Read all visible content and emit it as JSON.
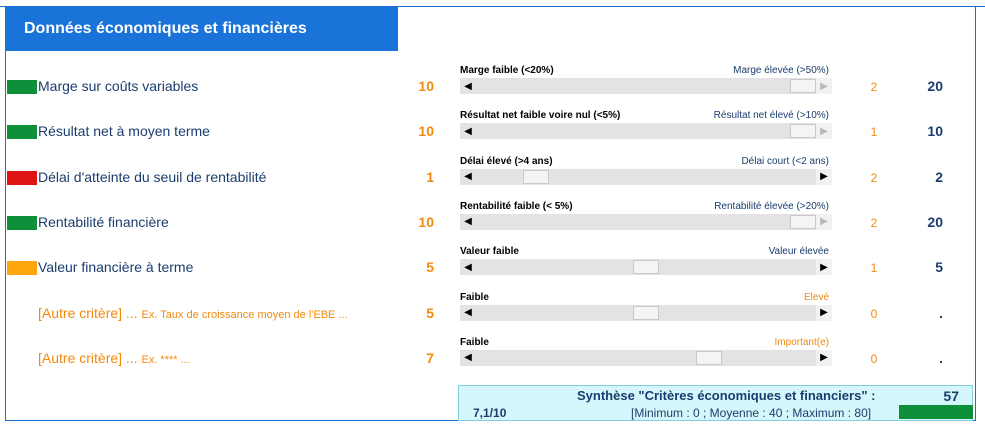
{
  "header": {
    "title": "Données économiques et financières"
  },
  "colors": {
    "green": "#0e8f3a",
    "red": "#e01414",
    "orange": "#ffa60d",
    "blue": "#1a73d9"
  },
  "criteria": [
    {
      "swatch": "green",
      "label": "Marge sur coûts variables",
      "weight": "10",
      "left_caption": "Marge faible (<20%)",
      "right_caption": "Marge élevée (>50%)",
      "slider_level": 1.0,
      "score": "2",
      "total": "20"
    },
    {
      "swatch": "green",
      "label": "Résultat net à moyen terme",
      "weight": "10",
      "left_caption": "Résultat net faible voire nul (<5%)",
      "right_caption": "Résultat net élevé (>10%)",
      "slider_level": 1.0,
      "score": "1",
      "total": "10"
    },
    {
      "swatch": "red",
      "label": "Délai d'atteinte du seuil de rentabilité",
      "weight": "1",
      "left_caption": "Délai élevé (>4 ans)",
      "right_caption": "Délai court (<2 ans)",
      "slider_level": 0.15,
      "score": "2",
      "total": "2"
    },
    {
      "swatch": "green",
      "label": "Rentabilité financière",
      "weight": "10",
      "left_caption": "Rentabilité faible (< 5%)",
      "right_caption": "Rentabilité élevée (>20%)",
      "slider_level": 1.0,
      "score": "2",
      "total": "20"
    },
    {
      "swatch": "orange",
      "label": "Valeur financière à terme",
      "weight": "5",
      "left_caption": "Valeur faible",
      "right_caption": "Valeur élevée",
      "slider_level": 0.5,
      "score": "1",
      "total": "5"
    },
    {
      "swatch": "",
      "label": "[Autre critère] ...",
      "example": "Ex. Taux de croissance moyen de l'EBE ...",
      "weight": "5",
      "left_caption": "Faible",
      "right_caption": "Elevé",
      "slider_level": 0.5,
      "score": "0",
      "total": "."
    },
    {
      "swatch": "",
      "label": "[Autre critère] ...",
      "example": "Ex. **** ...",
      "weight": "7",
      "left_caption": "Faible",
      "right_caption": "Important(e)",
      "slider_level": 0.7,
      "score": "0",
      "total": "."
    }
  ],
  "synthesis": {
    "title": "Synthèse \"Critères économiques et financiers\" :",
    "value": "57",
    "rating": "7,1/10",
    "range": "[Minimum : 0 ; Moyenne : 40 ; Maximum : 80]"
  }
}
